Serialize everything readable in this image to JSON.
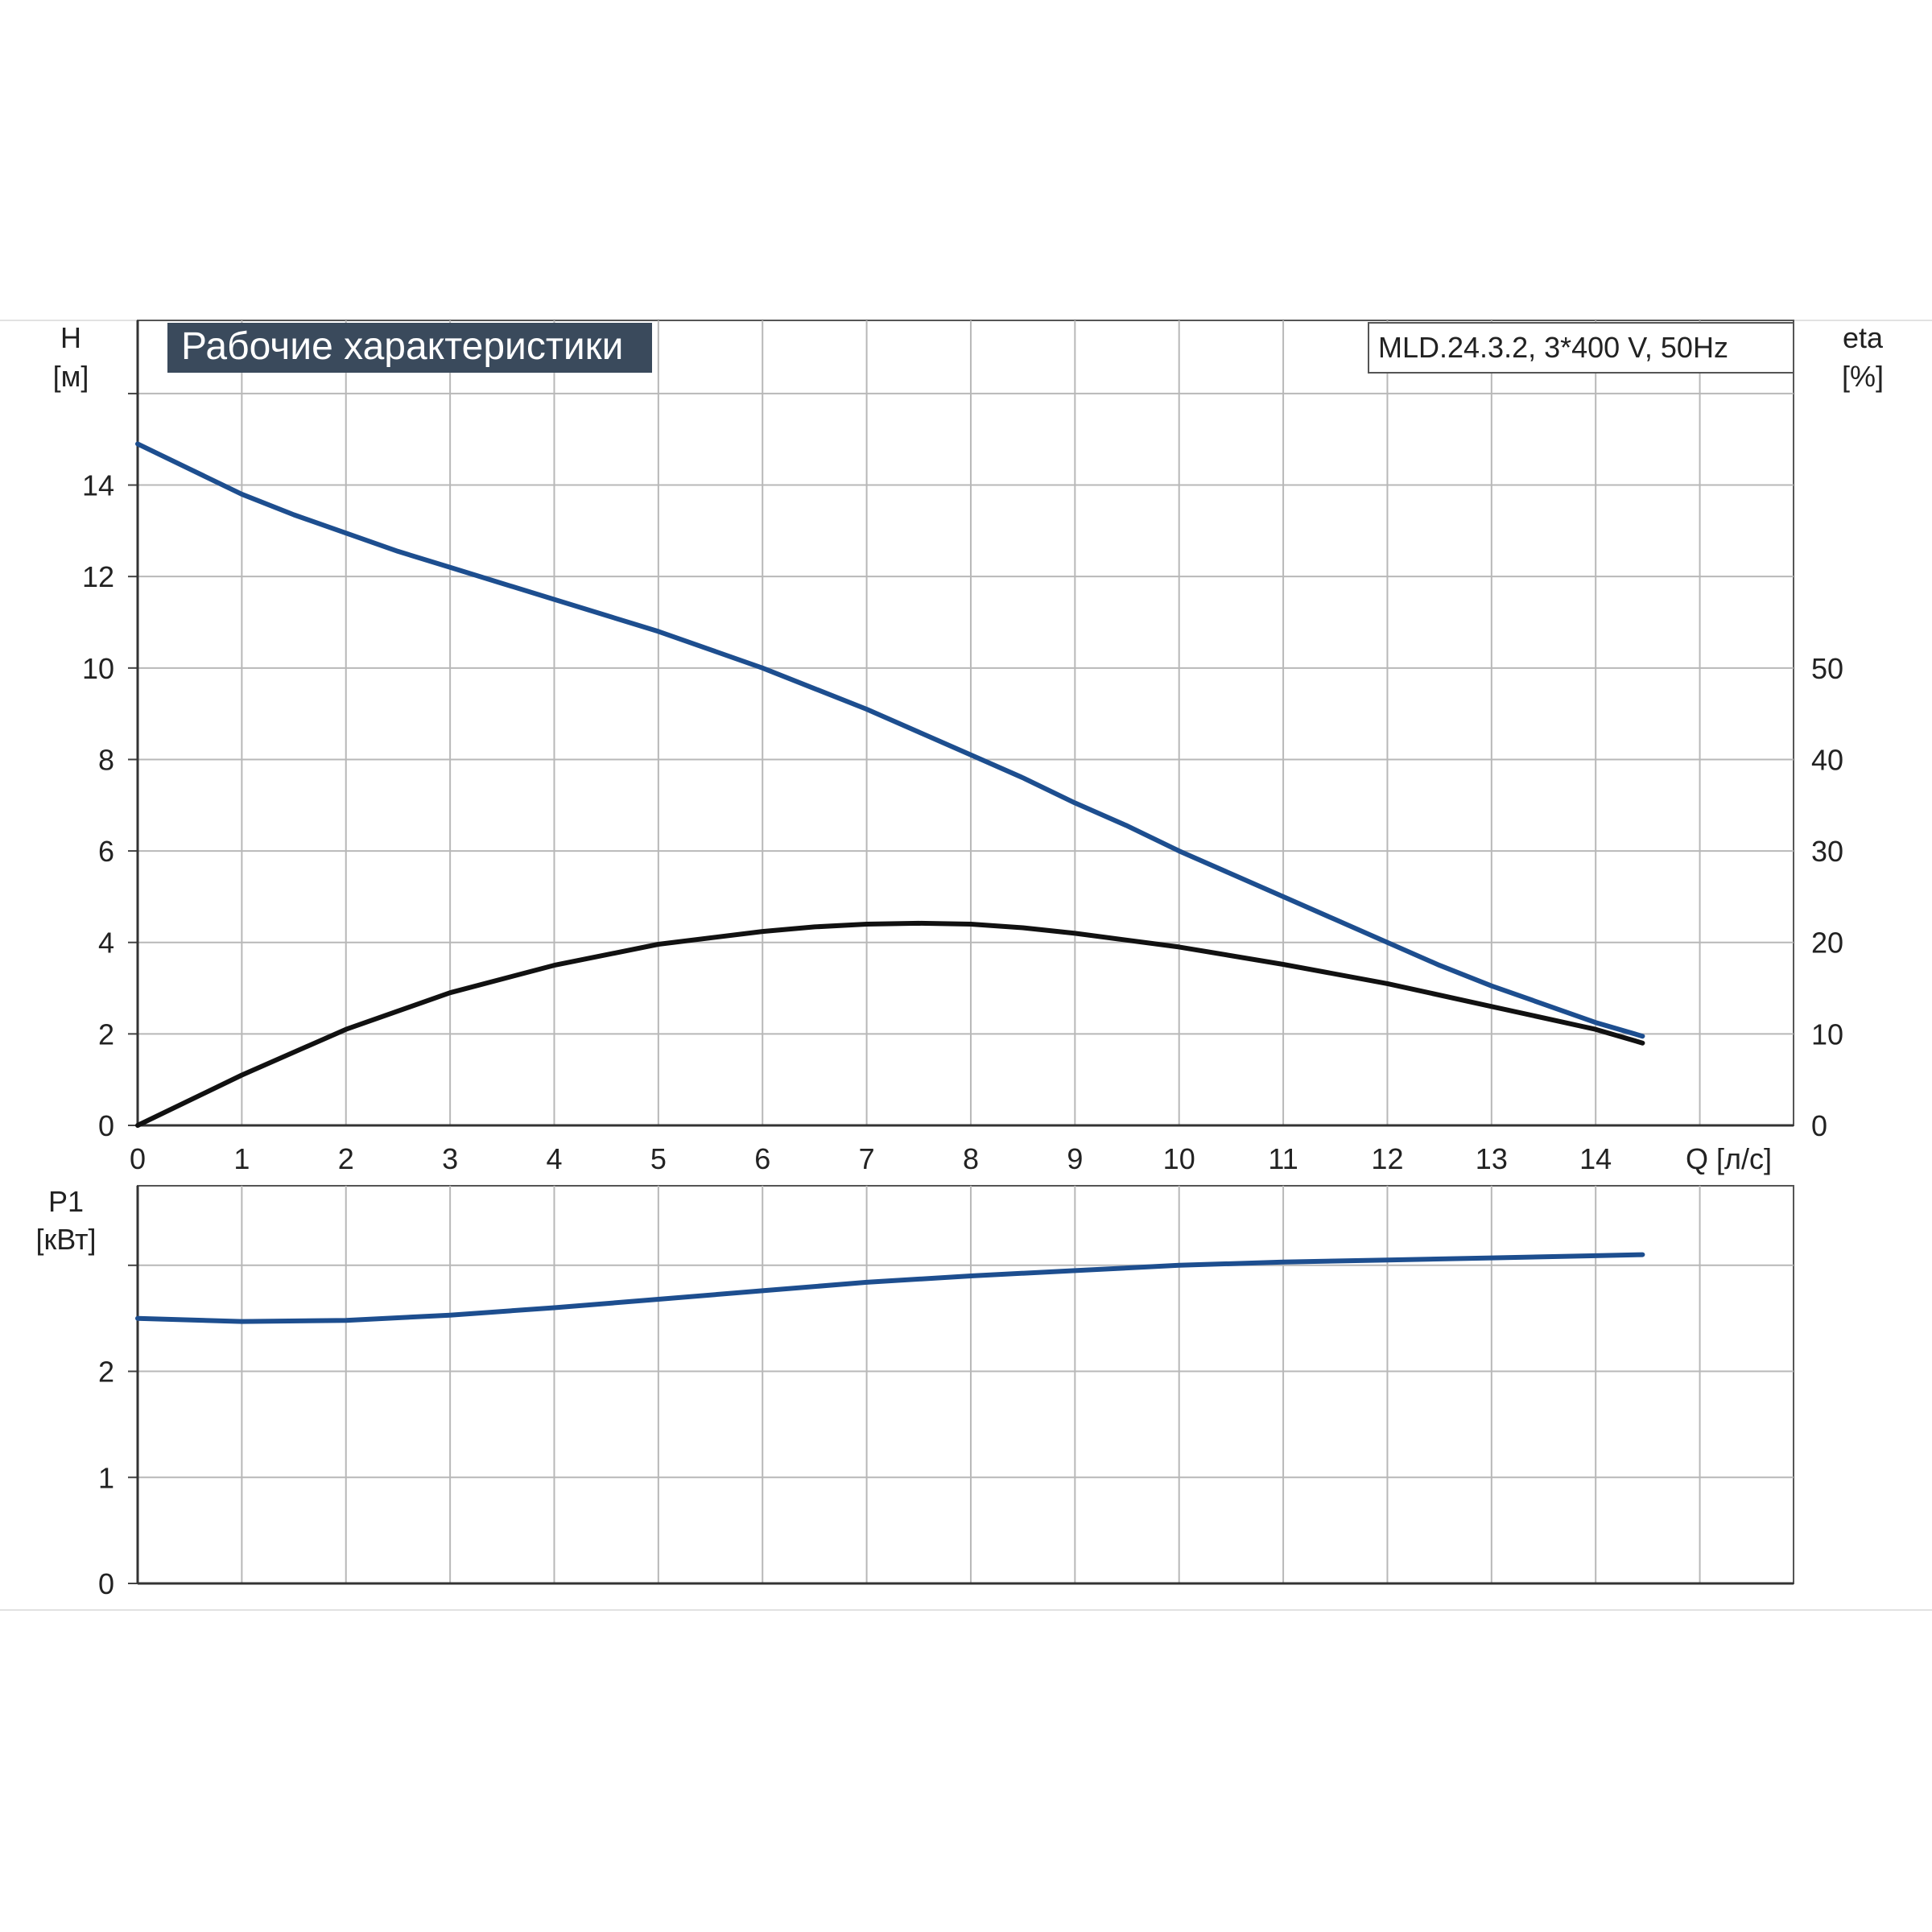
{
  "chart_data": [
    {
      "type": "line",
      "title": "Рабочие характеристики",
      "model_label": "MLD.24.3.2, 3*400 V, 50Hz",
      "xlabel": "Q [л/с]",
      "ylabel": "H",
      "ylabel_unit": "[м]",
      "y2label": "eta",
      "y2label_unit": "[%]",
      "xlim": [
        0,
        15.9
      ],
      "ylim": [
        0,
        17.6
      ],
      "y2lim": [
        0,
        88
      ],
      "x_ticks": [
        0,
        1,
        2,
        3,
        4,
        5,
        6,
        7,
        8,
        9,
        10,
        11,
        12,
        13,
        14
      ],
      "y_ticks": [
        0,
        2,
        4,
        6,
        8,
        10,
        12,
        14
      ],
      "y_gridlines": [
        0,
        2,
        4,
        6,
        8,
        10,
        12,
        14,
        16
      ],
      "y2_ticks": [
        0,
        10,
        20,
        30,
        40,
        50
      ],
      "grid": true,
      "series": [
        {
          "axis": "left",
          "color": "#1d4e8f",
          "x": [
            0,
            0.5,
            1,
            1.5,
            2,
            2.5,
            3,
            3.5,
            4,
            4.5,
            5,
            5.5,
            6,
            6.5,
            7,
            7.5,
            8,
            8.5,
            9,
            9.5,
            10,
            10.5,
            11,
            11.5,
            12,
            12.5,
            13,
            13.5,
            14,
            14.45
          ],
          "y": [
            14.9,
            14.35,
            13.8,
            13.35,
            12.95,
            12.55,
            12.2,
            11.85,
            11.5,
            11.15,
            10.8,
            10.4,
            10.0,
            9.55,
            9.1,
            8.6,
            8.1,
            7.6,
            7.05,
            6.55,
            6.0,
            5.5,
            5.0,
            4.5,
            4.0,
            3.5,
            3.05,
            2.65,
            2.25,
            1.95
          ]
        },
        {
          "axis": "right",
          "color": "#111111",
          "x": [
            0,
            1,
            2,
            3,
            4,
            5,
            6,
            6.5,
            7,
            7.5,
            8,
            8.5,
            9,
            10,
            11,
            12,
            13,
            14,
            14.45
          ],
          "y": [
            0,
            5.5,
            10.5,
            14.5,
            17.5,
            19.8,
            21.2,
            21.7,
            22.0,
            22.1,
            22.0,
            21.6,
            21.0,
            19.5,
            17.6,
            15.5,
            13.0,
            10.5,
            9.0
          ]
        }
      ]
    },
    {
      "type": "line",
      "ylabel": "P1",
      "ylabel_unit": "[кВт]",
      "xlim": [
        0,
        15.9
      ],
      "ylim": [
        0,
        3.75
      ],
      "y_ticks": [
        0,
        1,
        2
      ],
      "y_gridlines": [
        0,
        1,
        2,
        3
      ],
      "grid": true,
      "series": [
        {
          "color": "#1d4e8f",
          "x": [
            0,
            1,
            2,
            3,
            4,
            5,
            6,
            7,
            8,
            9,
            10,
            11,
            12,
            13,
            14,
            14.45
          ],
          "y": [
            2.5,
            2.47,
            2.48,
            2.53,
            2.6,
            2.68,
            2.76,
            2.84,
            2.9,
            2.95,
            3.0,
            3.03,
            3.05,
            3.07,
            3.09,
            3.1
          ]
        }
      ]
    }
  ]
}
